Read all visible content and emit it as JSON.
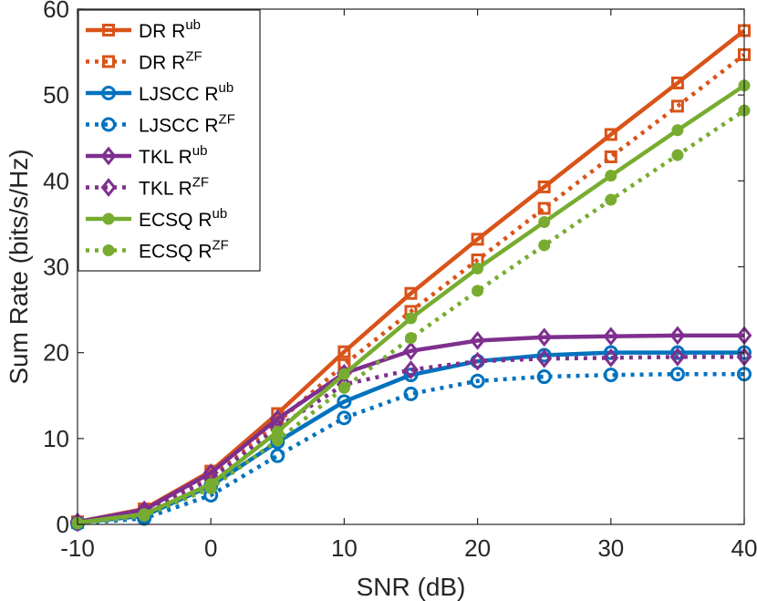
{
  "chart_data": {
    "type": "line",
    "title": "",
    "xlabel": "SNR (dB)",
    "ylabel": "Sum Rate (bits/s/Hz)",
    "xlim": [
      -10,
      40
    ],
    "ylim": [
      0,
      60
    ],
    "xticks": [
      "-10",
      "0",
      "10",
      "20",
      "30",
      "40"
    ],
    "yticks": [
      "0",
      "10",
      "20",
      "30",
      "40",
      "50",
      "60"
    ],
    "grid": false,
    "legend_position": "top-left",
    "x": [
      -10,
      -5,
      0,
      5,
      10,
      15,
      20,
      25,
      30,
      35,
      40
    ],
    "series": [
      {
        "name": "DR R",
        "sup": "ub",
        "color": "#D95319",
        "style": "solid",
        "marker": "square",
        "values": [
          0.3,
          1.8,
          6.2,
          12.9,
          20.1,
          26.9,
          33.2,
          39.3,
          45.4,
          51.4,
          57.5
        ]
      },
      {
        "name": "DR R",
        "sup": "ZF",
        "color": "#D95319",
        "style": "dotted",
        "marker": "square",
        "values": [
          0.2,
          1.5,
          5.6,
          11.9,
          18.6,
          24.8,
          30.8,
          36.8,
          42.8,
          48.7,
          54.7
        ]
      },
      {
        "name": "LJSCC R",
        "sup": "ub",
        "color": "#0072BD",
        "style": "solid",
        "marker": "circle-open",
        "values": [
          0.2,
          1.0,
          4.5,
          9.6,
          14.3,
          17.4,
          19.0,
          19.7,
          20.0,
          20.0,
          20.0
        ]
      },
      {
        "name": "LJSCC R",
        "sup": "ZF",
        "color": "#0072BD",
        "style": "dotted",
        "marker": "circle-open",
        "values": [
          0.1,
          0.7,
          3.4,
          8.0,
          12.4,
          15.2,
          16.7,
          17.2,
          17.4,
          17.5,
          17.5
        ]
      },
      {
        "name": "TKL R",
        "sup": "ub",
        "color": "#7E2F8E",
        "style": "solid",
        "marker": "diamond",
        "values": [
          0.3,
          1.7,
          6.0,
          12.3,
          17.6,
          20.2,
          21.4,
          21.8,
          21.9,
          22.0,
          22.0
        ]
      },
      {
        "name": "TKL R",
        "sup": "ZF",
        "color": "#7E2F8E",
        "style": "dotted",
        "marker": "diamond",
        "values": [
          0.2,
          1.4,
          5.3,
          11.3,
          16.3,
          18.0,
          19.0,
          19.3,
          19.4,
          19.5,
          19.5
        ]
      },
      {
        "name": "ECSQ R",
        "sup": "ub",
        "color": "#77AC30",
        "style": "solid",
        "marker": "dot",
        "values": [
          0.2,
          1.2,
          4.7,
          10.8,
          17.5,
          24.0,
          29.8,
          35.2,
          40.6,
          45.9,
          51.1
        ]
      },
      {
        "name": "ECSQ R",
        "sup": "ZF",
        "color": "#77AC30",
        "style": "dotted",
        "marker": "dot",
        "values": [
          0.1,
          1.0,
          4.2,
          9.8,
          15.9,
          21.7,
          27.2,
          32.5,
          37.8,
          43.0,
          48.2
        ]
      }
    ]
  }
}
